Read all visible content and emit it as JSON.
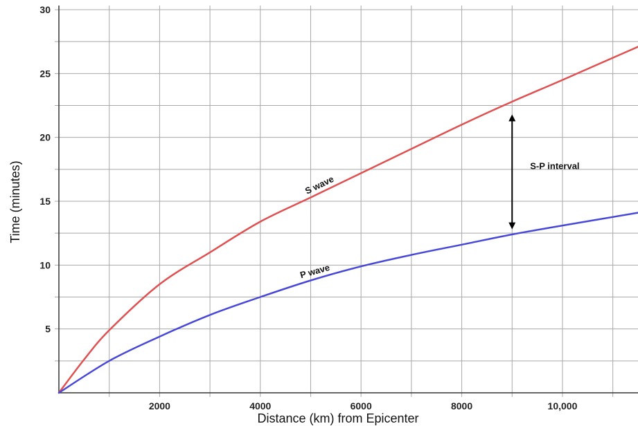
{
  "chart_data": {
    "type": "line",
    "title": "",
    "xlabel": "Distance (km) from Epicenter",
    "ylabel": "Time (minutes)",
    "xlim": [
      0,
      11500
    ],
    "ylim": [
      0,
      30
    ],
    "x_ticks": [
      2000,
      4000,
      6000,
      8000,
      10000
    ],
    "x_tick_labels": [
      "2000",
      "4000",
      "6000",
      "8000",
      "10,000"
    ],
    "x_minor_step": 1000,
    "y_ticks": [
      5,
      10,
      15,
      20,
      25,
      30
    ],
    "y_tick_labels": [
      "5",
      "10",
      "15",
      "20",
      "25",
      "30"
    ],
    "y_minor_step": 2.5,
    "grid": true,
    "series": [
      {
        "name": "S wave",
        "color": "#e05050",
        "x": [
          0,
          500,
          1000,
          2000,
          3000,
          4000,
          5000,
          6000,
          7000,
          8000,
          9000,
          10000,
          11500
        ],
        "y": [
          0,
          2.6,
          4.9,
          8.5,
          11.0,
          13.4,
          15.3,
          17.2,
          19.1,
          21.0,
          22.8,
          24.5,
          27.1
        ]
      },
      {
        "name": "P wave",
        "color": "#4848d8",
        "x": [
          0,
          1000,
          2000,
          3000,
          4000,
          5000,
          6000,
          7000,
          8000,
          9000,
          10000,
          11500
        ],
        "y": [
          0,
          2.5,
          4.4,
          6.1,
          7.5,
          8.8,
          9.9,
          10.8,
          11.6,
          12.4,
          13.1,
          14.1
        ]
      }
    ],
    "annotations": [
      {
        "text": "S-P interval",
        "x": 9000,
        "y_from": 12.8,
        "y_to": 21.8
      }
    ]
  }
}
